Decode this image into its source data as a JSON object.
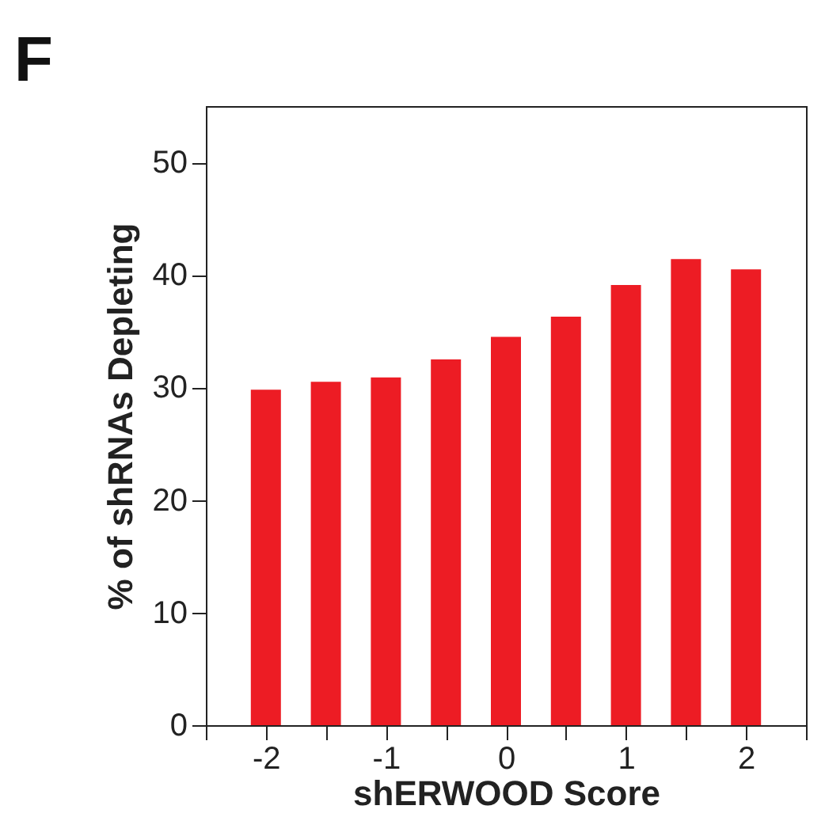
{
  "chart_data": {
    "type": "bar",
    "title": "F",
    "xlabel": "shERWOOD Score",
    "ylabel": "% of shRNAs Depleting",
    "x": [
      -2,
      -1.5,
      -1,
      -0.5,
      0,
      0.5,
      1,
      1.5,
      2
    ],
    "values": [
      29.8,
      30.5,
      30.9,
      32.5,
      34.5,
      36.3,
      39.1,
      41.4,
      40.5
    ],
    "color": "#ed1c24",
    "xlim": [
      -2.5,
      2.5
    ],
    "xticks": [
      {
        "value": -2.5,
        "label": null
      },
      -2,
      {
        "value": -1.5,
        "label": null
      },
      -1,
      {
        "value": -0.5,
        "label": null
      },
      0,
      {
        "value": 0.5,
        "label": null
      },
      1,
      {
        "value": 1.5,
        "label": null
      },
      2,
      {
        "value": 2.5,
        "label": null
      }
    ],
    "ylim": [
      0,
      55
    ],
    "yticks": [
      0,
      10,
      20,
      30,
      40,
      50
    ]
  }
}
